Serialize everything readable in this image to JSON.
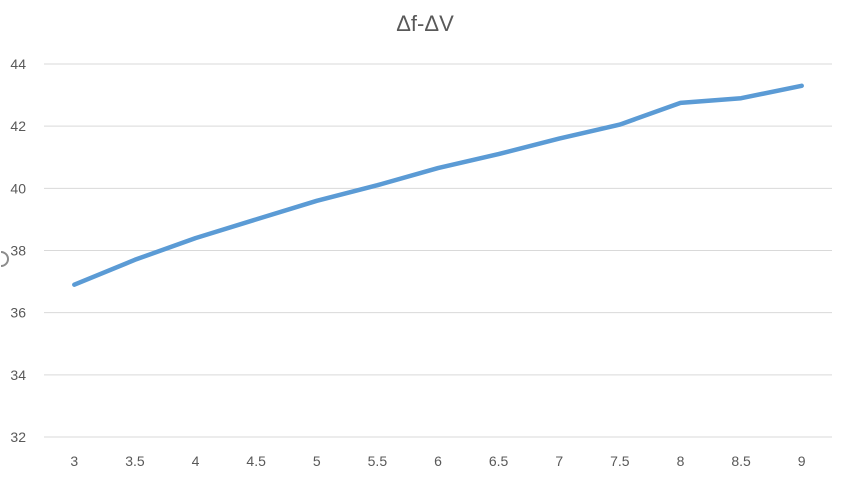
{
  "chart_data": {
    "type": "line",
    "title": "Δf-ΔV",
    "xlabel": "",
    "ylabel": "",
    "categories": [
      "3",
      "3.5",
      "4",
      "4.5",
      "5",
      "5.5",
      "6",
      "6.5",
      "7",
      "7.5",
      "8",
      "8.5",
      "9"
    ],
    "series": [
      {
        "values": [
          36.9,
          37.7,
          38.4,
          39.0,
          39.6,
          40.1,
          40.65,
          41.1,
          41.6,
          42.05,
          42.75,
          42.9,
          43.3
        ]
      }
    ],
    "yticks": [
      "32",
      "34",
      "36",
      "38",
      "40",
      "42",
      "44"
    ],
    "ylim": [
      32,
      44
    ],
    "grid": true,
    "legend": "none",
    "colors": {
      "series": "#5b9bd5"
    }
  }
}
